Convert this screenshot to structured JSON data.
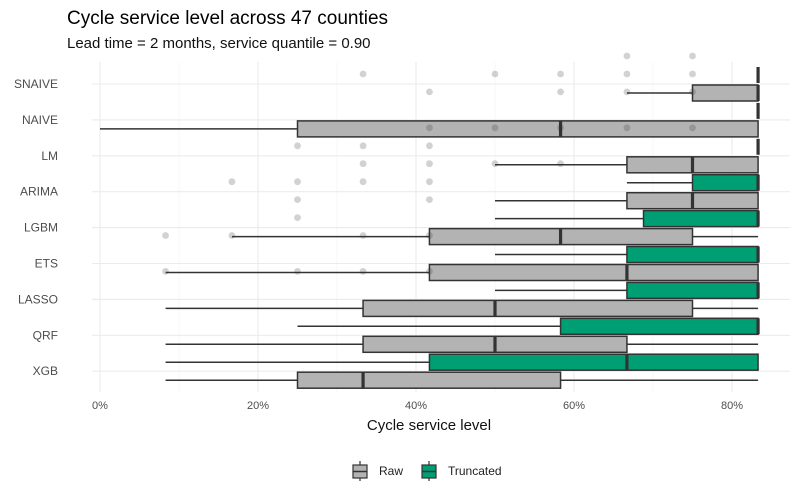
{
  "chart_data": {
    "type": "boxplot",
    "title": "Cycle service level across 47 counties",
    "subtitle": "Lead time = 2 months, service quantile = 0.90",
    "xlabel": "Cycle service level",
    "ylabel": "",
    "xlim": [
      0,
      85
    ],
    "x_ticks": [
      0,
      20,
      40,
      60,
      80
    ],
    "x_tick_labels": [
      "0%",
      "20%",
      "40%",
      "60%",
      "80%"
    ],
    "grid": true,
    "legend": {
      "position": "bottom",
      "entries": [
        "Raw",
        "Truncated"
      ]
    },
    "colors": {
      "Raw": "#b3b3b3",
      "Truncated": "#009e73",
      "outline": "#333333"
    },
    "categories": [
      "SNAIVE",
      "NAIVE",
      "LM",
      "ARIMA",
      "LGBM",
      "ETS",
      "LASSO",
      "QRF",
      "XGB"
    ],
    "series": [
      {
        "name": "Raw",
        "boxes": [
          {
            "category": "SNAIVE",
            "lower_whisker": 66.7,
            "q1": 75.0,
            "median": 83.3,
            "q3": 83.3,
            "upper_whisker": 83.3,
            "outliers": [
              33.3,
              50.0,
              58.3,
              66.7,
              75.0
            ]
          },
          {
            "category": "NAIVE",
            "lower_whisker": 0.0,
            "q1": 25.0,
            "median": 58.3,
            "q3": 83.3,
            "upper_whisker": 83.3,
            "outliers": []
          },
          {
            "category": "LM",
            "lower_whisker": 50.0,
            "q1": 66.7,
            "median": 75.0,
            "q3": 83.3,
            "upper_whisker": 83.3,
            "outliers": [
              25.0,
              33.3,
              41.7
            ]
          },
          {
            "category": "ARIMA",
            "lower_whisker": 50.0,
            "q1": 66.7,
            "median": 75.0,
            "q3": 83.3,
            "upper_whisker": 83.3,
            "outliers": [
              16.7,
              25.0,
              33.3,
              41.7
            ]
          },
          {
            "category": "LGBM",
            "lower_whisker": 16.7,
            "q1": 41.7,
            "median": 58.3,
            "q3": 75.0,
            "upper_whisker": 83.3,
            "outliers": [
              25.0
            ]
          },
          {
            "category": "ETS",
            "lower_whisker": 8.3,
            "q1": 41.7,
            "median": 66.7,
            "q3": 83.3,
            "upper_whisker": 83.3,
            "outliers": []
          },
          {
            "category": "LASSO",
            "lower_whisker": 8.3,
            "q1": 33.3,
            "median": 50.0,
            "q3": 75.0,
            "upper_whisker": 83.3,
            "outliers": []
          },
          {
            "category": "QRF",
            "lower_whisker": 8.3,
            "q1": 33.3,
            "median": 50.0,
            "q3": 66.7,
            "upper_whisker": 83.3,
            "outliers": []
          },
          {
            "category": "XGB",
            "lower_whisker": 8.3,
            "q1": 25.0,
            "median": 33.3,
            "q3": 58.3,
            "upper_whisker": 83.3,
            "outliers": []
          }
        ]
      },
      {
        "name": "Truncated",
        "boxes": [
          {
            "category": "SNAIVE",
            "lower_whisker": 83.3,
            "q1": 83.3,
            "median": 83.3,
            "q3": 83.3,
            "upper_whisker": 83.3,
            "outliers": [
              66.7,
              75.0
            ]
          },
          {
            "category": "NAIVE",
            "lower_whisker": 83.3,
            "q1": 83.3,
            "median": 83.3,
            "q3": 83.3,
            "upper_whisker": 83.3,
            "outliers": [
              41.7,
              58.3,
              66.7,
              75.0
            ]
          },
          {
            "category": "LM",
            "lower_whisker": 83.3,
            "q1": 83.3,
            "median": 83.3,
            "q3": 83.3,
            "upper_whisker": 83.3,
            "outliers": [
              41.7,
              50.0,
              58.3,
              66.7,
              75.0
            ]
          },
          {
            "category": "ARIMA",
            "lower_whisker": 66.7,
            "q1": 75.0,
            "median": 83.3,
            "q3": 83.3,
            "upper_whisker": 83.3,
            "outliers": [
              33.3,
              41.7,
              50.0,
              58.3
            ]
          },
          {
            "category": "LGBM",
            "lower_whisker": 50.0,
            "q1": 68.8,
            "median": 83.3,
            "q3": 83.3,
            "upper_whisker": 83.3,
            "outliers": [
              25.0,
              41.7
            ]
          },
          {
            "category": "ETS",
            "lower_whisker": 50.0,
            "q1": 66.7,
            "median": 83.3,
            "q3": 83.3,
            "upper_whisker": 83.3,
            "outliers": [
              8.3,
              16.7,
              33.3,
              41.7
            ]
          },
          {
            "category": "LASSO",
            "lower_whisker": 50.0,
            "q1": 66.7,
            "median": 83.3,
            "q3": 83.3,
            "upper_whisker": 83.3,
            "outliers": [
              8.3,
              25.0,
              33.3,
              41.7
            ]
          },
          {
            "category": "QRF",
            "lower_whisker": 25.0,
            "q1": 58.3,
            "median": 83.3,
            "q3": 83.3,
            "upper_whisker": 83.3,
            "outliers": []
          },
          {
            "category": "XGB",
            "lower_whisker": 8.3,
            "q1": 41.7,
            "median": 66.7,
            "q3": 83.3,
            "upper_whisker": 83.3,
            "outliers": []
          }
        ]
      }
    ]
  }
}
